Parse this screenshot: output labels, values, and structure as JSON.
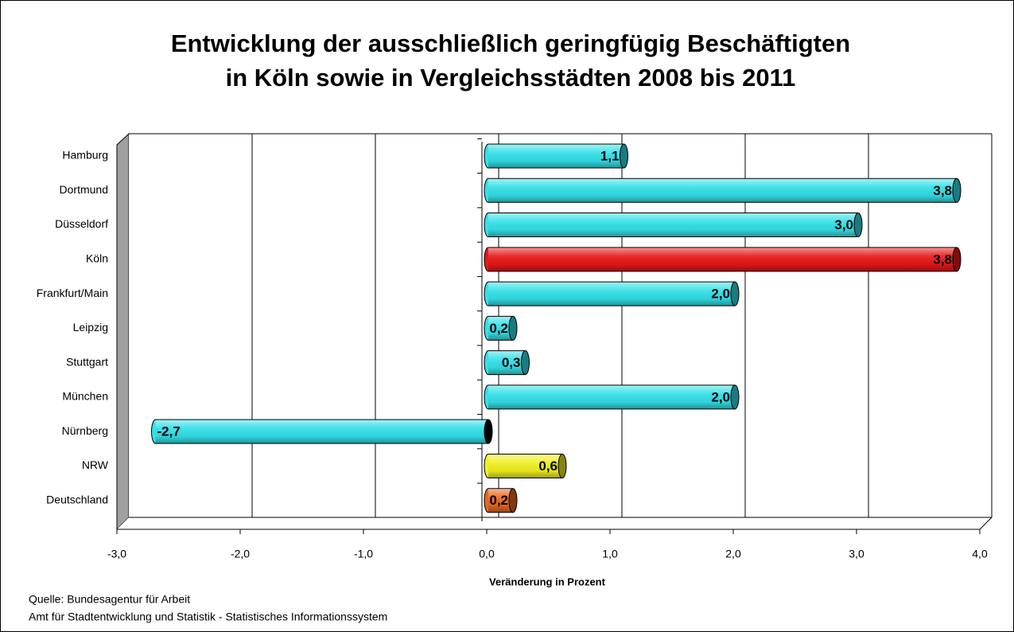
{
  "chart_data": {
    "type": "bar",
    "orientation": "horizontal",
    "title": [
      "Entwicklung der ausschließlich geringfügig Beschäftigten",
      "in Köln sowie in Vergleichsstädten 2008 bis 2011"
    ],
    "categories": [
      "Hamburg",
      "Dortmund",
      "Düsseldorf",
      "Köln",
      "Frankfurt/Main",
      "Leipzig",
      "Stuttgart",
      "München",
      "Nürnberg",
      "NRW",
      "Deutschland"
    ],
    "values": [
      1.1,
      3.8,
      3.0,
      3.8,
      2.0,
      0.2,
      0.3,
      2.0,
      -2.7,
      0.6,
      0.2
    ],
    "value_labels": [
      "1,1",
      "3,8",
      "3,0",
      "3,8",
      "2,0",
      "0,2",
      "0,3",
      "2,0",
      "-2,7",
      "0,6",
      "0,2"
    ],
    "colors": [
      "#33e0e8",
      "#33e0e8",
      "#33e0e8",
      "#e81818",
      "#33e0e8",
      "#33e0e8",
      "#33e0e8",
      "#33e0e8",
      "#33e0e8",
      "#f0f020",
      "#e86820"
    ],
    "xlim": [
      -3.0,
      4.0
    ],
    "xticks": [
      {
        "value": -3.0,
        "label": "-3,0"
      },
      {
        "value": -2.0,
        "label": "-2,0"
      },
      {
        "value": -1.0,
        "label": "-1,0"
      },
      {
        "value": 0.0,
        "label": "0,0"
      },
      {
        "value": 1.0,
        "label": "1,0"
      },
      {
        "value": 2.0,
        "label": "2,0"
      },
      {
        "value": 3.0,
        "label": "3,0"
      },
      {
        "value": 4.0,
        "label": "4,0"
      }
    ],
    "x_label": "Veränderung  in Prozent",
    "grid": true,
    "notes": [
      "Quelle: Bundesagentur für Arbeit",
      "Amt für Stadtentwicklung und Statistik - Statistisches Informationssystem"
    ]
  }
}
